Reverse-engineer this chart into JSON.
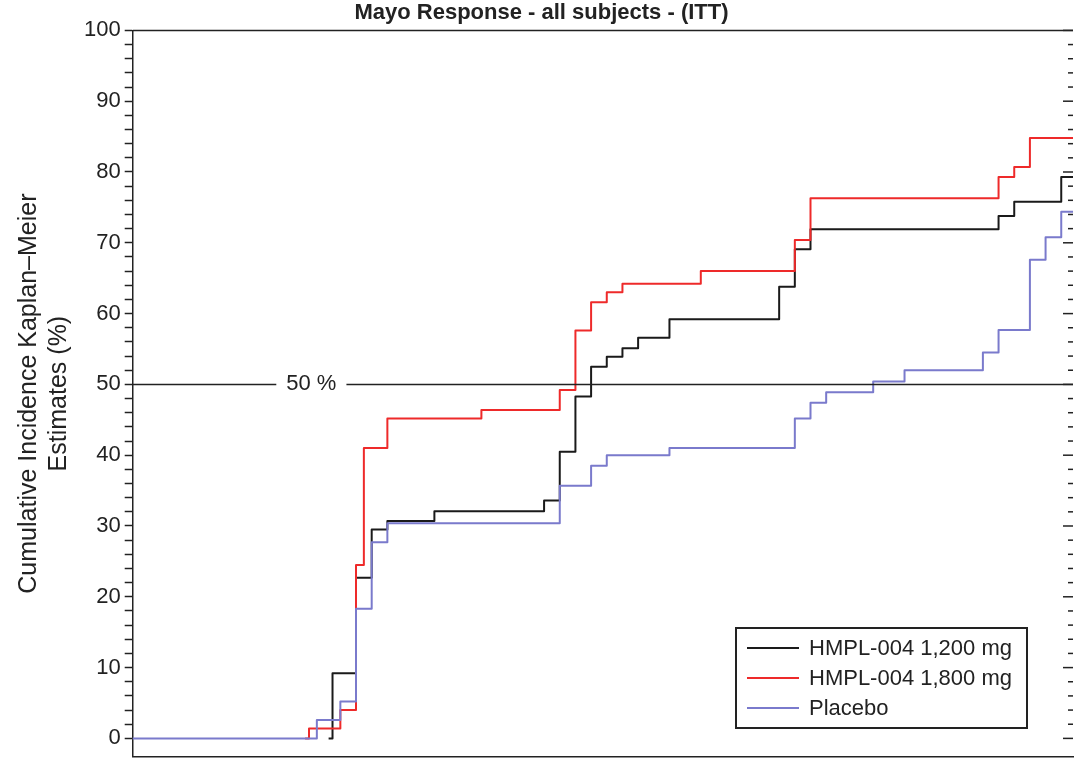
{
  "chart_data": {
    "type": "step",
    "title": "Mayo Response - all subjects - (ITT)",
    "ylabel": "Cumulative Incidence Kaplan–Meier\nEstimates (%)",
    "categories": [
      null,
      null,
      null,
      null,
      null,
      null,
      null,
      null,
      null,
      null,
      null,
      null,
      null,
      null,
      null,
      null,
      null,
      null,
      null,
      null,
      null,
      null,
      null,
      null,
      null,
      null,
      null,
      null,
      null,
      null,
      null,
      null,
      null,
      null,
      null,
      null,
      null,
      null,
      null,
      null,
      null,
      null,
      null,
      null,
      null,
      null,
      null,
      null,
      null,
      null,
      null,
      null,
      null,
      null,
      null,
      null,
      null,
      null,
      null,
      null,
      null,
      null,
      null,
      null,
      null,
      null,
      null,
      null,
      null,
      null,
      null,
      null,
      null,
      null,
      null,
      null,
      null,
      null,
      null,
      null,
      null,
      null,
      null,
      null,
      null,
      null,
      null,
      null,
      null,
      null,
      null,
      null,
      null,
      null,
      null,
      null,
      null,
      null,
      null,
      null,
      null,
      null,
      null,
      null,
      null,
      null,
      null,
      null,
      null,
      null,
      null,
      null,
      null,
      null,
      null,
      null,
      null,
      null,
      null,
      null,
      null
    ],
    "series": [
      {
        "name": "HMPL-004 1,200 mg",
        "color": "#1a1a1a",
        "values": [
          null,
          null,
          null,
          null,
          null,
          null,
          null,
          null,
          null,
          null,
          null,
          null,
          null,
          null,
          null,
          null,
          null,
          null,
          null,
          null,
          null,
          null,
          null,
          null,
          null,
          0,
          9.2,
          9.2,
          9.2,
          22.7,
          22.7,
          29.5,
          29.5,
          30.7,
          30.7,
          30.7,
          30.7,
          30.7,
          30.7,
          32.1,
          32.1,
          32.1,
          32.1,
          32.1,
          32.1,
          32.1,
          32.1,
          32.1,
          32.1,
          32.1,
          32.1,
          32.1,
          32.1,
          33.6,
          33.6,
          40.5,
          40.5,
          48.3,
          48.3,
          52.5,
          52.5,
          53.9,
          53.9,
          55.1,
          55.1,
          56.6,
          56.6,
          56.6,
          56.6,
          59.2,
          59.2,
          59.2,
          59.2,
          59.2,
          59.2,
          59.2,
          59.2,
          59.2,
          59.2,
          59.2,
          59.2,
          59.2,
          59.2,
          63.8,
          63.8,
          69.1,
          69.1,
          71.9,
          71.9,
          71.9,
          71.9,
          71.9,
          71.9,
          71.9,
          71.9,
          71.9,
          71.9,
          71.9,
          71.9,
          71.9,
          71.9,
          71.9,
          71.9,
          71.9,
          71.9,
          71.9,
          71.9,
          71.9,
          71.9,
          71.9,
          71.9,
          73.8,
          73.8,
          75.8,
          75.8,
          75.8,
          75.8,
          75.8,
          75.8,
          79.3,
          79.3
        ]
      },
      {
        "name": "HMPL-004 1,800 mg",
        "color": "#ee2a2a",
        "values": [
          null,
          null,
          null,
          null,
          null,
          null,
          null,
          null,
          null,
          null,
          null,
          null,
          null,
          null,
          null,
          null,
          null,
          null,
          null,
          null,
          null,
          null,
          0,
          1.4,
          1.4,
          1.4,
          1.4,
          4,
          4,
          24.5,
          41,
          41,
          41,
          45.2,
          45.2,
          45.2,
          45.2,
          45.2,
          45.2,
          45.2,
          45.2,
          45.2,
          45.2,
          45.2,
          45.2,
          46.4,
          46.4,
          46.4,
          46.4,
          46.4,
          46.4,
          46.4,
          46.4,
          46.4,
          46.4,
          49.2,
          49.2,
          57.6,
          57.6,
          61.6,
          61.6,
          63,
          63,
          64.2,
          64.2,
          64.2,
          64.2,
          64.2,
          64.2,
          64.2,
          64.2,
          64.2,
          64.2,
          66,
          66,
          66,
          66,
          66,
          66,
          66,
          66,
          66,
          66,
          66,
          66,
          70.4,
          70.4,
          76.3,
          76.3,
          76.3,
          76.3,
          76.3,
          76.3,
          76.3,
          76.3,
          76.3,
          76.3,
          76.3,
          76.3,
          76.3,
          76.3,
          76.3,
          76.3,
          76.3,
          76.3,
          76.3,
          76.3,
          76.3,
          76.3,
          76.3,
          76.3,
          79.3,
          79.3,
          80.7,
          80.7,
          84.8,
          84.8,
          84.8,
          84.8,
          84.8,
          84.8
        ]
      },
      {
        "name": "Placebo",
        "color": "#7a7acc",
        "values": [
          0,
          0,
          0,
          0,
          0,
          0,
          0,
          0,
          0,
          0,
          0,
          0,
          0,
          0,
          0,
          0,
          0,
          0,
          0,
          0,
          0,
          0,
          0,
          0,
          2.6,
          2.6,
          2.6,
          5.2,
          5.2,
          18.3,
          18.3,
          27.7,
          27.7,
          30.4,
          30.4,
          30.4,
          30.4,
          30.4,
          30.4,
          30.4,
          30.4,
          30.4,
          30.4,
          30.4,
          30.4,
          30.4,
          30.4,
          30.4,
          30.4,
          30.4,
          30.4,
          30.4,
          30.4,
          30.4,
          30.4,
          35.7,
          35.7,
          35.7,
          35.7,
          38.5,
          38.5,
          40,
          40,
          40,
          40,
          40,
          40,
          40,
          40,
          41,
          41,
          41,
          41,
          41,
          41,
          41,
          41,
          41,
          41,
          41,
          41,
          41,
          41,
          41,
          41,
          45.2,
          45.2,
          47.4,
          47.4,
          48.9,
          48.9,
          48.9,
          48.9,
          48.9,
          48.9,
          50.4,
          50.4,
          50.4,
          50.4,
          52,
          52,
          52,
          52,
          52,
          52,
          52,
          52,
          52,
          52,
          54.5,
          54.5,
          57.7,
          57.7,
          57.7,
          57.7,
          67.6,
          67.6,
          70.8,
          70.8,
          74.4,
          74.4
        ]
      }
    ],
    "ylim": [
      -2.6,
      100
    ],
    "yticks": [
      0,
      {
        "value": 2,
        "label": null
      },
      {
        "value": 4,
        "label": null
      },
      {
        "value": 6,
        "label": null
      },
      {
        "value": 8,
        "label": null
      },
      10,
      {
        "value": 12,
        "label": null
      },
      {
        "value": 14,
        "label": null
      },
      {
        "value": 16,
        "label": null
      },
      {
        "value": 18,
        "label": null
      },
      20,
      {
        "value": 22,
        "label": null
      },
      {
        "value": 24,
        "label": null
      },
      {
        "value": 26,
        "label": null
      },
      {
        "value": 28,
        "label": null
      },
      30,
      {
        "value": 32,
        "label": null
      },
      {
        "value": 34,
        "label": null
      },
      {
        "value": 36,
        "label": null
      },
      {
        "value": 38,
        "label": null
      },
      40,
      {
        "value": 42,
        "label": null
      },
      {
        "value": 44,
        "label": null
      },
      {
        "value": 46,
        "label": null
      },
      {
        "value": 48,
        "label": null
      },
      50,
      {
        "value": 52,
        "label": null
      },
      {
        "value": 54,
        "label": null
      },
      {
        "value": 56,
        "label": null
      },
      {
        "value": 58,
        "label": null
      },
      60,
      {
        "value": 62,
        "label": null
      },
      {
        "value": 64,
        "label": null
      },
      {
        "value": 66,
        "label": null
      },
      {
        "value": 68,
        "label": null
      },
      70,
      {
        "value": 72,
        "label": null
      },
      {
        "value": 74,
        "label": null
      },
      {
        "value": 76,
        "label": null
      },
      {
        "value": 78,
        "label": null
      },
      80,
      {
        "value": 82,
        "label": null
      },
      {
        "value": 84,
        "label": null
      },
      {
        "value": 86,
        "label": null
      },
      {
        "value": 88,
        "label": null
      },
      90,
      {
        "value": 92,
        "label": null
      },
      {
        "value": 94,
        "label": null
      },
      {
        "value": 96,
        "label": null
      },
      {
        "value": 98,
        "label": null
      },
      100
    ],
    "tick_labels": "y",
    "ref_lines": [
      {
        "axis": "y",
        "value": 50,
        "label": "50 %"
      }
    ],
    "legend": "bottom right"
  }
}
